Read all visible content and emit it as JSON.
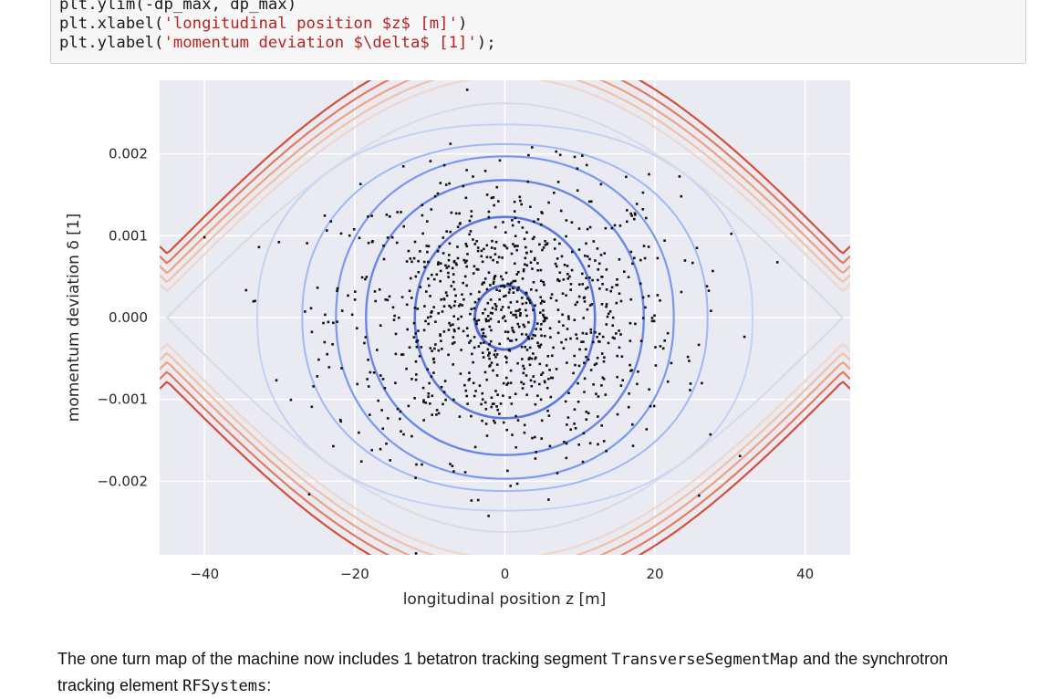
{
  "code_cell": {
    "lines": [
      {
        "pre": "plt.ylim(-dp_max, dp_max)",
        "str": "",
        "post": ""
      },
      {
        "pre": "plt.xlabel(",
        "str": "'longitudinal position $z$ [m]'",
        "post": ")"
      },
      {
        "pre": "plt.ylabel(",
        "str": "'momentum deviation $\\delta$ [1]'",
        "post": ");"
      }
    ]
  },
  "chart_data": {
    "type": "scatter",
    "xlabel": "longitudinal position z [m]",
    "ylabel": "momentum deviation δ [1]",
    "xlim": [
      -46,
      46
    ],
    "ylim": [
      -0.0029,
      0.0029
    ],
    "xticks": [
      -40,
      -20,
      0,
      20,
      40
    ],
    "xtick_labels": [
      "−40",
      "−20",
      "0",
      "20",
      "40"
    ],
    "yticks": [
      -0.002,
      -0.001,
      0.0,
      0.001,
      0.002
    ],
    "ytick_labels": [
      "−0.002",
      "−0.001",
      "0.000",
      "0.001",
      "0.002"
    ],
    "grid": true,
    "background": "#eaeaf2",
    "contour_levels": [
      {
        "a": 4,
        "b": 0.00039,
        "color": "#5069d8",
        "width": 3
      },
      {
        "a": 12,
        "b": 0.00123,
        "color": "#5a78e0",
        "width": 2.6
      },
      {
        "a": 18.5,
        "b": 0.00168,
        "color": "#6a86e6",
        "width": 2.4
      },
      {
        "a": 22.5,
        "b": 0.00197,
        "color": "#7c98ee",
        "width": 2.2
      },
      {
        "a": 27,
        "b": 0.00212,
        "color": "#a0b8f6",
        "width": 2
      },
      {
        "a": 33,
        "b": 0.00236,
        "color": "#c4d2f4",
        "width": 2
      },
      {
        "a": 45,
        "b": 0.00262,
        "color": "#d8dbe6",
        "width": 2
      }
    ],
    "outer_contours": [
      {
        "offset": 0.00032,
        "color": "#f0d6cc"
      },
      {
        "offset": 0.00043,
        "color": "#f3c1aa"
      },
      {
        "offset": 0.00054,
        "color": "#f0a284"
      },
      {
        "offset": 0.00066,
        "color": "#e57b5c"
      },
      {
        "offset": 0.00078,
        "color": "#d4503c"
      }
    ],
    "particles": {
      "count": 1000,
      "sigma_z": 11.5,
      "sigma_delta": 0.00085,
      "color": "#111111"
    }
  },
  "paragraph": {
    "text_1": "The one turn map of the machine now includes 1 betatron tracking segment ",
    "code_1": "TransverseSegmentMap",
    "text_2": " and the synchrotron tracking element ",
    "code_2": "RFSystems",
    "text_3": ":"
  }
}
